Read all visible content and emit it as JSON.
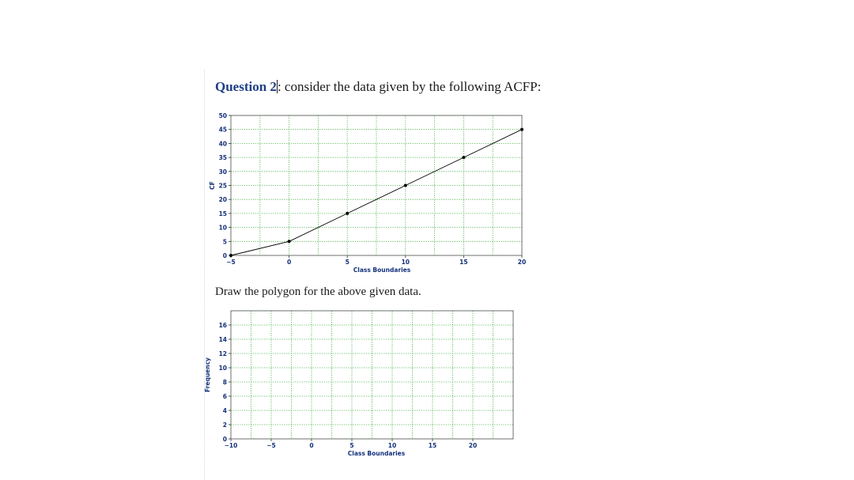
{
  "question": {
    "label": "Question 2",
    "colon": ":",
    "text": " consider the data given by the following ACFP:"
  },
  "instruction": "Draw the polygon for the above given data.",
  "chart_data": [
    {
      "type": "line",
      "title": "",
      "xlabel": "Class Boundaries",
      "ylabel": "CF",
      "xlim": [
        -5,
        20
      ],
      "ylim": [
        0,
        50
      ],
      "x_ticks": [
        -5,
        0,
        5,
        10,
        15,
        20
      ],
      "y_ticks": [
        0,
        5,
        10,
        15,
        20,
        25,
        30,
        35,
        40,
        45,
        50
      ],
      "x_grid_step": 2.5,
      "grid": true,
      "series": [
        {
          "x": [
            -5,
            0,
            5,
            10,
            15,
            20
          ],
          "y": [
            0,
            5,
            15,
            25,
            35,
            45
          ],
          "color": "#000000"
        }
      ]
    },
    {
      "type": "line",
      "title": "",
      "xlabel": "Class Boundaries",
      "ylabel": "Frequency",
      "xlim": [
        -10,
        25
      ],
      "ylim": [
        0,
        18
      ],
      "x_ticks": [
        -10,
        -5,
        0,
        5,
        10,
        15,
        20
      ],
      "y_ticks": [
        0,
        2,
        4,
        6,
        8,
        10,
        12,
        14,
        16
      ],
      "x_grid_step": 2.5,
      "grid": true,
      "series": []
    }
  ],
  "colors": {
    "grid": "#3fae3f",
    "heading_label": "#1f3f86",
    "text": "#1b1b1b",
    "label_blue": "#12307a"
  }
}
